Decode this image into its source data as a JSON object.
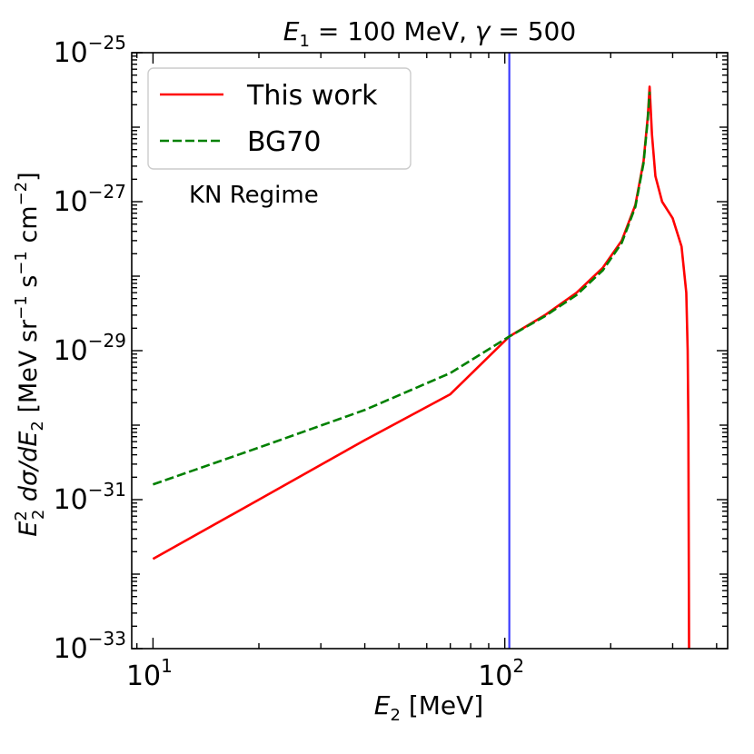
{
  "chart_data": {
    "type": "line",
    "title": {
      "sym_e": "E",
      "sub_1": "1",
      "mid": " = 100 MeV, ",
      "sym_gamma": "γ",
      "tail": " = 500"
    },
    "xlabel": {
      "sym": "E",
      "sub": "2",
      "rest": " [MeV]"
    },
    "ylabel": {
      "sym": "E",
      "sup": "2",
      "sub": "2",
      "mid": " dσ/dE",
      "sub2": "2",
      "rest1": " [MeV sr",
      "sup2": "−1",
      "rest2": " s",
      "sup3": "−1",
      "rest3": " cm",
      "sup4": "−2",
      "rest4": "]"
    },
    "x_scale": "log",
    "y_scale": "log",
    "xlim": [
      8.7,
      430
    ],
    "ylim": [
      1e-33,
      1e-25
    ],
    "x_ticks": [
      {
        "value": 10,
        "base": "10",
        "exp": "1"
      },
      {
        "value": 100,
        "base": "10",
        "exp": "2"
      }
    ],
    "y_ticks": [
      {
        "value": 1e-25,
        "base": "10",
        "exp": "−25"
      },
      {
        "value": 1e-27,
        "base": "10",
        "exp": "−27"
      },
      {
        "value": 1e-29,
        "base": "10",
        "exp": "−29"
      },
      {
        "value": 1e-31,
        "base": "10",
        "exp": "−31"
      },
      {
        "value": 1e-33,
        "base": "10",
        "exp": "−33"
      }
    ],
    "vline": {
      "x": 103,
      "color": "#3b3bff"
    },
    "annotation": "KN Regime",
    "legend": {
      "position": "top-left"
    },
    "series": [
      {
        "name": "This work",
        "color": "#ff0000",
        "style": "solid",
        "x": [
          10,
          20,
          40,
          70,
          103,
          130,
          160,
          190,
          215,
          235,
          248,
          255,
          258,
          262,
          268,
          280,
          300,
          318,
          328,
          331,
          332.5,
          333.5,
          334
        ],
        "y": [
          1.6e-32,
          1e-31,
          6.3e-31,
          2.6e-30,
          1.55e-29,
          3e-29,
          6e-29,
          1.3e-28,
          3e-28,
          9e-28,
          3.5e-27,
          1.4e-26,
          3.5e-26,
          8e-27,
          2.2e-27,
          1e-27,
          6e-28,
          2.5e-28,
          6e-29,
          1e-29,
          1e-30,
          1e-32,
          1e-33
        ]
      },
      {
        "name": "BG70",
        "color": "#008000",
        "style": "dashed",
        "x": [
          10,
          20,
          40,
          70,
          103,
          130,
          160,
          190,
          215,
          235,
          248,
          255,
          258
        ],
        "y": [
          1.6e-31,
          5e-31,
          1.6e-30,
          5e-30,
          1.55e-29,
          2.9e-29,
          5.6e-29,
          1.2e-28,
          2.8e-28,
          8.5e-28,
          3.3e-27,
          1.3e-26,
          3e-26
        ]
      }
    ]
  }
}
